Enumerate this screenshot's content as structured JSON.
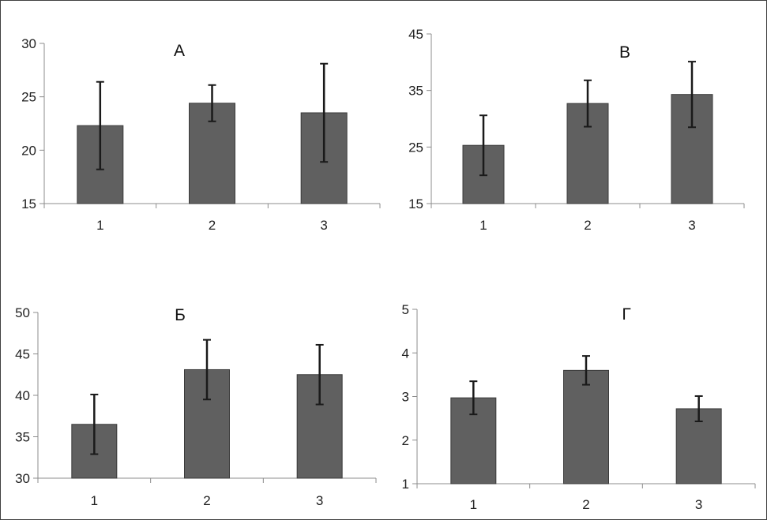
{
  "chart_data": [
    {
      "type": "bar",
      "title": "А",
      "categories": [
        "1",
        "2",
        "3"
      ],
      "values": [
        22.3,
        24.4,
        23.5
      ],
      "errors": [
        4.1,
        1.7,
        4.6
      ],
      "ylim": [
        15,
        30
      ],
      "yticks": [
        "15",
        "20",
        "25",
        "30"
      ],
      "bar_color": "#606060",
      "grid": false
    },
    {
      "type": "bar",
      "title": "В",
      "categories": [
        "1",
        "2",
        "3"
      ],
      "values": [
        25.3,
        32.7,
        34.3
      ],
      "errors": [
        5.3,
        4.1,
        5.8
      ],
      "ylim": [
        15,
        45
      ],
      "yticks": [
        "15",
        "25",
        "35",
        "45"
      ],
      "bar_color": "#606060",
      "grid": false
    },
    {
      "type": "bar",
      "title": "Б",
      "categories": [
        "1",
        "2",
        "3"
      ],
      "values": [
        36.5,
        43.1,
        42.5
      ],
      "errors": [
        3.6,
        3.6,
        3.6
      ],
      "ylim": [
        30,
        50
      ],
      "yticks": [
        "30",
        "35",
        "40",
        "45",
        "50"
      ],
      "bar_color": "#606060",
      "grid": false
    },
    {
      "type": "bar",
      "title": "Г",
      "categories": [
        "1",
        "2",
        "3"
      ],
      "values": [
        2.97,
        3.6,
        2.72
      ],
      "errors": [
        0.38,
        0.33,
        0.29
      ],
      "ylim": [
        1,
        5
      ],
      "yticks": [
        "1",
        "2",
        "3",
        "4",
        "5"
      ],
      "bar_color": "#606060",
      "grid": false
    }
  ]
}
